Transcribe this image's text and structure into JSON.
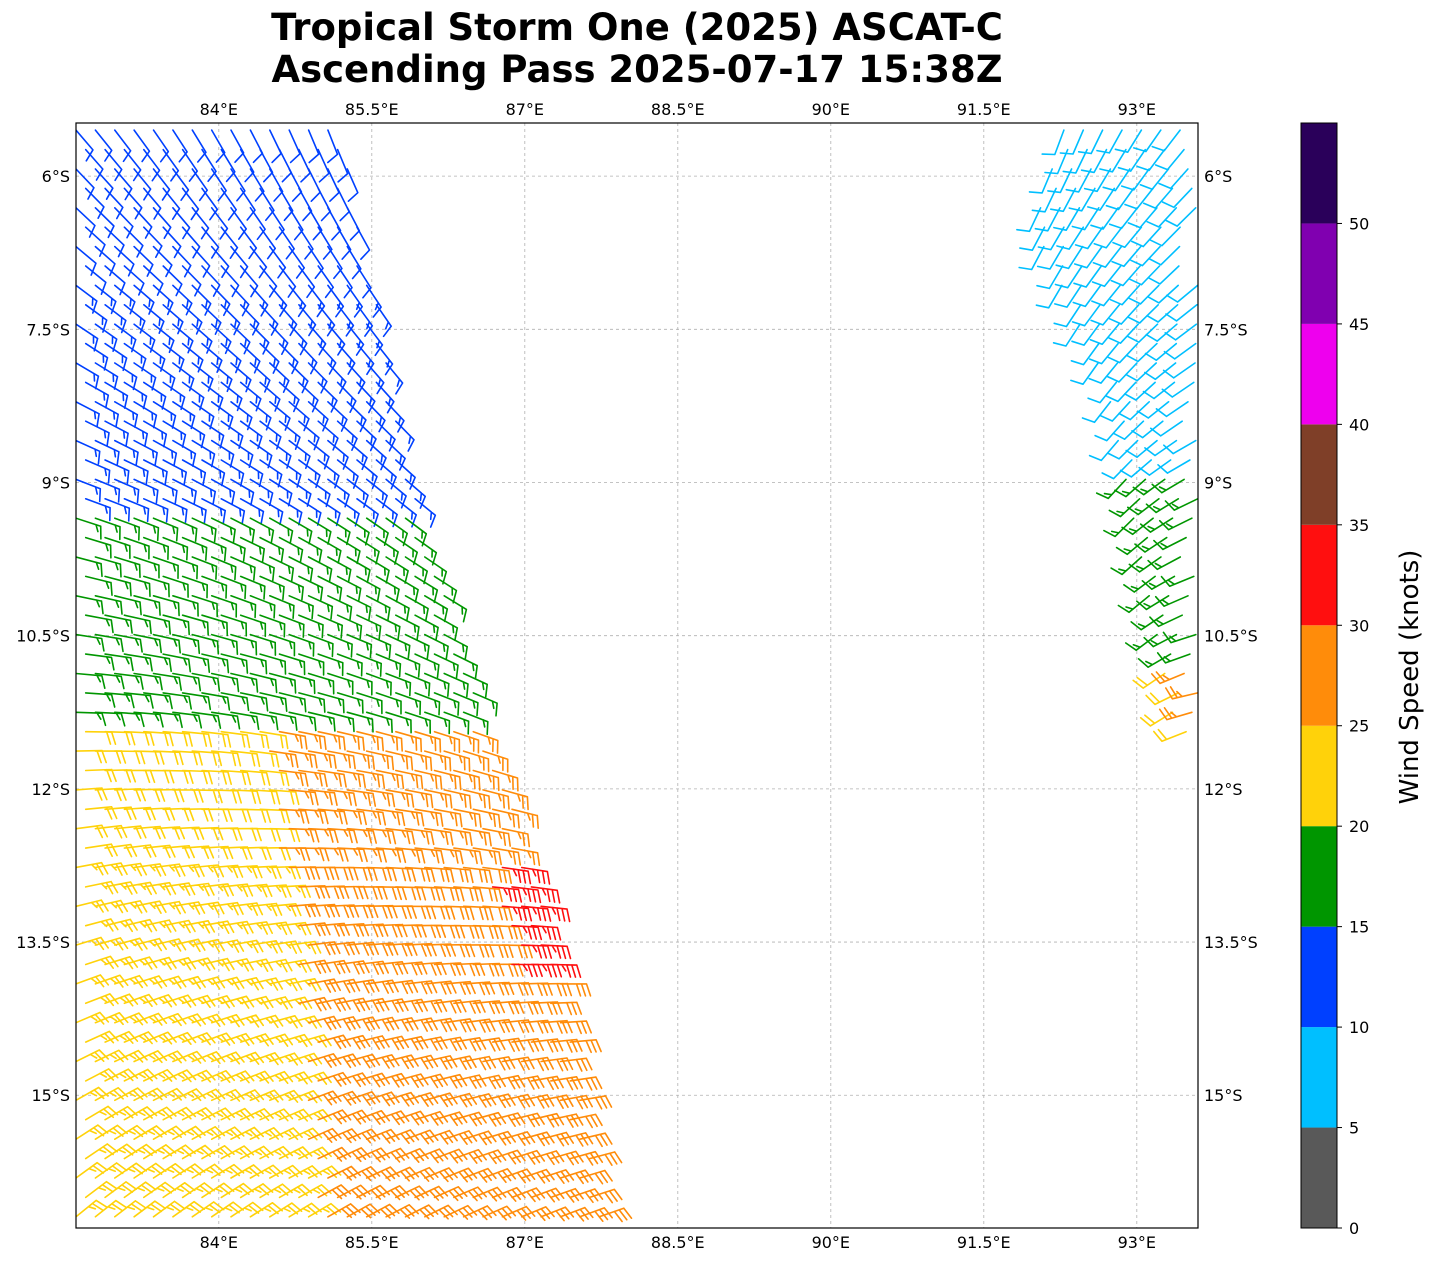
{
  "title": {
    "line1": "Tropical Storm One (2025) ASCAT-C",
    "line2": "Ascending Pass 2025-07-17 15:38Z"
  },
  "map": {
    "extent": {
      "lon": [
        82.6,
        93.6
      ],
      "lat": [
        -16.3,
        -5.48
      ]
    },
    "lon_ticks": [
      {
        "value": 84.0,
        "label": "84°E"
      },
      {
        "value": 85.5,
        "label": "85.5°E"
      },
      {
        "value": 87.0,
        "label": "87°E"
      },
      {
        "value": 88.5,
        "label": "88.5°E"
      },
      {
        "value": 90.0,
        "label": "90°E"
      },
      {
        "value": 91.5,
        "label": "91.5°E"
      },
      {
        "value": 93.0,
        "label": "93°E"
      }
    ],
    "lat_ticks": [
      {
        "value": -6.0,
        "label": "6°S"
      },
      {
        "value": -7.5,
        "label": "7.5°S"
      },
      {
        "value": -9.0,
        "label": "9°S"
      },
      {
        "value": -10.5,
        "label": "10.5°S"
      },
      {
        "value": -12.0,
        "label": "12°S"
      },
      {
        "value": -13.5,
        "label": "13.5°S"
      },
      {
        "value": -15.0,
        "label": "15°S"
      }
    ],
    "gridlines": true
  },
  "colorbar": {
    "label": "Wind Speed (knots)",
    "bins": [
      {
        "min": 0,
        "max": 5,
        "color": "#595959"
      },
      {
        "min": 5,
        "max": 10,
        "color": "#00bfff"
      },
      {
        "min": 10,
        "max": 15,
        "color": "#0040ff"
      },
      {
        "min": 15,
        "max": 20,
        "color": "#009600"
      },
      {
        "min": 20,
        "max": 25,
        "color": "#ffd20a"
      },
      {
        "min": 25,
        "max": 30,
        "color": "#ff8c0a"
      },
      {
        "min": 30,
        "max": 35,
        "color": "#ff0f0f"
      },
      {
        "min": 35,
        "max": 40,
        "color": "#7f3f28"
      },
      {
        "min": 40,
        "max": 45,
        "color": "#ee00ee"
      },
      {
        "min": 45,
        "max": 50,
        "color": "#8000b0"
      },
      {
        "min": 50,
        "max": 55,
        "color": "#2a005a"
      }
    ],
    "tick_labels": [
      "0",
      "5",
      "10",
      "15",
      "20",
      "25",
      "30",
      "35",
      "40",
      "45",
      "50"
    ]
  },
  "chart_data": {
    "type": "wind_barbs",
    "units": "knots",
    "swaths": [
      {
        "name": "",
        "west_edge": [
          [
            82.6,
            -5.5
          ],
          [
            82.6,
            -15.0
          ],
          [
            82.6,
            -16.3
          ]
        ],
        "east_edge": [
          [
            85.2,
            -5.5
          ],
          [
            85.9,
            -9.0
          ],
          [
            86.5,
            -11.0
          ],
          [
            87.0,
            -12.5
          ],
          [
            87.5,
            -14.5
          ],
          [
            87.8,
            -16.3
          ]
        ],
        "speed_zones": [
          {
            "lat_from": -5.5,
            "lat_to": -7.0,
            "speed": 12
          },
          {
            "lat_from": -7.0,
            "lat_to": -9.2,
            "speed": 13
          },
          {
            "lat_from": -9.2,
            "lat_to": -11.3,
            "speed": 17
          },
          {
            "lat_from": -11.3,
            "lat_to": -12.6,
            "speed": 22
          },
          {
            "lat_from": -12.6,
            "lat_to": -16.3,
            "speed": 24
          }
        ],
        "direction_deg": {
          "north": 150,
          "south": 60
        }
      },
      {
        "name": "",
        "west_edge": [
          [
            92.3,
            -5.5
          ],
          [
            92.0,
            -6.5
          ],
          [
            92.7,
            -8.0
          ],
          [
            93.1,
            -10.0
          ],
          [
            93.4,
            -11.5
          ]
        ],
        "east_edge": [
          [
            93.6,
            -5.5
          ],
          [
            93.6,
            -11.5
          ]
        ],
        "speed_zones": [
          {
            "lat_from": -5.5,
            "lat_to": -8.8,
            "speed": 9
          },
          {
            "lat_from": -8.8,
            "lat_to": -10.7,
            "speed": 17
          },
          {
            "lat_from": -10.7,
            "lat_to": -11.5,
            "speed": 22
          }
        ],
        "direction_deg": {
          "north": 210,
          "south": 250
        }
      }
    ]
  }
}
